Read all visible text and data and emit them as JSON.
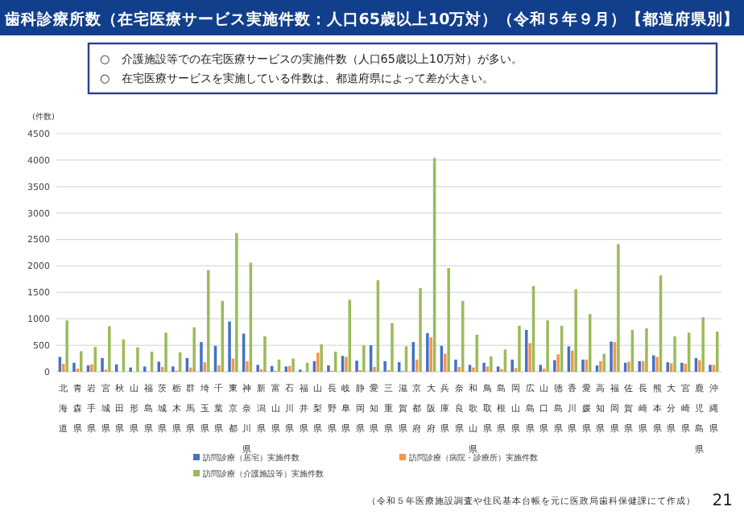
{
  "chart_data": {
    "type": "bar",
    "title": "歯科診療所数（在宅医療サービス実施件数：人口65歳以上10万対）（令和５年９月）【都道府県別】",
    "annotations": [
      "○　介護施設等での在宅医療サービスの実施件数（人口65歳以上10万対）が多い。",
      "○　在宅医療サービスを実施している件数は、都道府県によって差が大きい。",
      "（令和５年医療施設調査や住民基本台帳を元に医政局歯科保健課にて作成）",
      "21"
    ],
    "ylabel": "(件数)",
    "categories": [
      "北海道",
      "青森県",
      "岩手県",
      "宮城県",
      "秋田県",
      "山形県",
      "福島県",
      "茨城県",
      "栃木県",
      "群馬県",
      "埼玉県",
      "千葉県",
      "東京都",
      "神奈川県",
      "新潟県",
      "富山県",
      "石川県",
      "福井県",
      "山梨県",
      "長野県",
      "岐阜県",
      "静岡県",
      "愛知県",
      "三重県",
      "滋賀県",
      "京都府",
      "大阪府",
      "兵庫県",
      "奈良県",
      "和歌山県",
      "鳥取県",
      "島根県",
      "岡山県",
      "広島県",
      "山口県",
      "徳島県",
      "香川県",
      "愛媛県",
      "高知県",
      "福岡県",
      "佐賀県",
      "長崎県",
      "熊本県",
      "大分県",
      "宮崎県",
      "鹿児島県",
      "沖縄県"
    ],
    "series": [
      {
        "name": "訪問診療（居宅）実施件数",
        "color": "#4472c4",
        "values": [
          280,
          170,
          120,
          260,
          140,
          80,
          100,
          190,
          100,
          260,
          560,
          490,
          950,
          720,
          130,
          110,
          100,
          40,
          200,
          120,
          300,
          210,
          500,
          200,
          180,
          560,
          730,
          490,
          230,
          130,
          170,
          100,
          230,
          790,
          130,
          220,
          480,
          230,
          120,
          570,
          170,
          200,
          310,
          180,
          170,
          260,
          130
        ]
      },
      {
        "name": "訪問診療（病院・診療所）実施件数",
        "color": "#f79646",
        "values": [
          150,
          60,
          140,
          40,
          null,
          null,
          null,
          90,
          20,
          80,
          180,
          120,
          250,
          200,
          50,
          20,
          110,
          null,
          360,
          20,
          280,
          30,
          90,
          30,
          20,
          230,
          650,
          340,
          90,
          80,
          100,
          50,
          70,
          540,
          60,
          330,
          400,
          230,
          200,
          560,
          190,
          200,
          280,
          160,
          150,
          220,
          130
        ]
      },
      {
        "name": "訪問診療（介護施設等）実施件数",
        "color": "#9bbb59",
        "values": [
          970,
          390,
          470,
          860,
          610,
          460,
          380,
          740,
          370,
          840,
          1920,
          1340,
          2620,
          2060,
          670,
          230,
          250,
          170,
          520,
          380,
          1360,
          500,
          1730,
          920,
          480,
          1580,
          4040,
          1960,
          1340,
          700,
          290,
          420,
          870,
          1620,
          970,
          870,
          1560,
          1090,
          340,
          2410,
          790,
          820,
          1820,
          670,
          740,
          1030,
          760
        ]
      }
    ],
    "ylim": [
      0,
      4500
    ],
    "yticks": [
      0,
      500,
      1000,
      1500,
      2000,
      2500,
      3000,
      3500,
      4000,
      4500
    ],
    "grid": "y",
    "legend": "bottom"
  }
}
